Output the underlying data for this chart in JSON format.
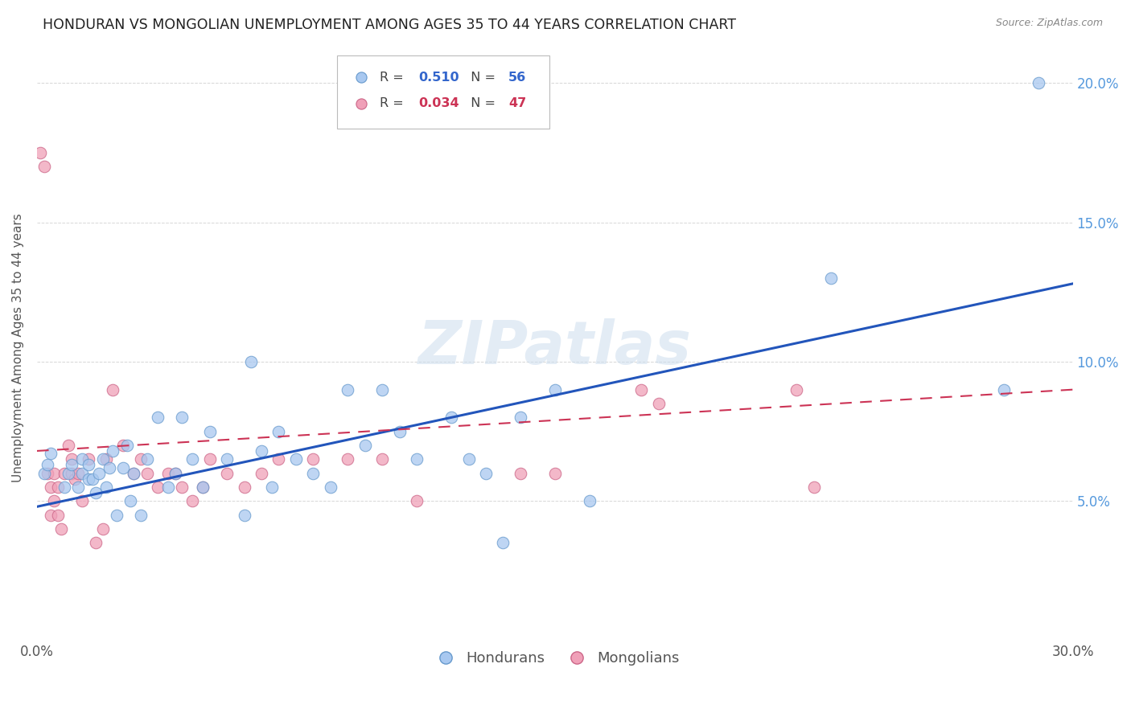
{
  "title": "HONDURAN VS MONGOLIAN UNEMPLOYMENT AMONG AGES 35 TO 44 YEARS CORRELATION CHART",
  "source": "Source: ZipAtlas.com",
  "ylabel": "Unemployment Among Ages 35 to 44 years",
  "xlim": [
    0.0,
    0.3
  ],
  "ylim": [
    0.0,
    0.21
  ],
  "honduran_color": "#A8C8F0",
  "honduran_edge": "#6699CC",
  "mongolian_color": "#F0A0B8",
  "mongolian_edge": "#CC6688",
  "trend_honduran_color": "#2255BB",
  "trend_mongolian_color": "#CC3355",
  "legend_R_honduran": "0.510",
  "legend_N_honduran": "56",
  "legend_R_mongolian": "0.034",
  "legend_N_mongolian": "47",
  "watermark": "ZIPatlas",
  "honduran_x": [
    0.002,
    0.003,
    0.004,
    0.008,
    0.009,
    0.01,
    0.012,
    0.013,
    0.013,
    0.015,
    0.015,
    0.016,
    0.017,
    0.018,
    0.019,
    0.02,
    0.021,
    0.022,
    0.023,
    0.025,
    0.026,
    0.027,
    0.028,
    0.03,
    0.032,
    0.035,
    0.038,
    0.04,
    0.042,
    0.045,
    0.048,
    0.05,
    0.055,
    0.06,
    0.062,
    0.065,
    0.068,
    0.07,
    0.075,
    0.08,
    0.085,
    0.09,
    0.095,
    0.1,
    0.105,
    0.11,
    0.12,
    0.125,
    0.13,
    0.135,
    0.14,
    0.15,
    0.16,
    0.23,
    0.28,
    0.29
  ],
  "honduran_y": [
    0.06,
    0.063,
    0.067,
    0.055,
    0.06,
    0.063,
    0.055,
    0.06,
    0.065,
    0.058,
    0.063,
    0.058,
    0.053,
    0.06,
    0.065,
    0.055,
    0.062,
    0.068,
    0.045,
    0.062,
    0.07,
    0.05,
    0.06,
    0.045,
    0.065,
    0.08,
    0.055,
    0.06,
    0.08,
    0.065,
    0.055,
    0.075,
    0.065,
    0.045,
    0.1,
    0.068,
    0.055,
    0.075,
    0.065,
    0.06,
    0.055,
    0.09,
    0.07,
    0.09,
    0.075,
    0.065,
    0.08,
    0.065,
    0.06,
    0.035,
    0.08,
    0.09,
    0.05,
    0.13,
    0.09,
    0.2
  ],
  "mongolian_x": [
    0.001,
    0.002,
    0.003,
    0.004,
    0.004,
    0.005,
    0.005,
    0.006,
    0.006,
    0.007,
    0.008,
    0.009,
    0.01,
    0.01,
    0.011,
    0.012,
    0.013,
    0.015,
    0.017,
    0.019,
    0.02,
    0.022,
    0.025,
    0.028,
    0.03,
    0.032,
    0.035,
    0.038,
    0.04,
    0.042,
    0.045,
    0.048,
    0.05,
    0.055,
    0.06,
    0.065,
    0.07,
    0.08,
    0.09,
    0.1,
    0.11,
    0.14,
    0.15,
    0.175,
    0.18,
    0.22,
    0.225
  ],
  "mongolian_y": [
    0.175,
    0.17,
    0.06,
    0.055,
    0.045,
    0.06,
    0.05,
    0.055,
    0.045,
    0.04,
    0.06,
    0.07,
    0.06,
    0.065,
    0.058,
    0.06,
    0.05,
    0.065,
    0.035,
    0.04,
    0.065,
    0.09,
    0.07,
    0.06,
    0.065,
    0.06,
    0.055,
    0.06,
    0.06,
    0.055,
    0.05,
    0.055,
    0.065,
    0.06,
    0.055,
    0.06,
    0.065,
    0.065,
    0.065,
    0.065,
    0.05,
    0.06,
    0.06,
    0.09,
    0.085,
    0.09,
    0.055
  ],
  "trend_h_x0": 0.0,
  "trend_h_y0": 0.048,
  "trend_h_x1": 0.3,
  "trend_h_y1": 0.128,
  "trend_m_x0": 0.0,
  "trend_m_y0": 0.068,
  "trend_m_x1": 0.3,
  "trend_m_y1": 0.09
}
